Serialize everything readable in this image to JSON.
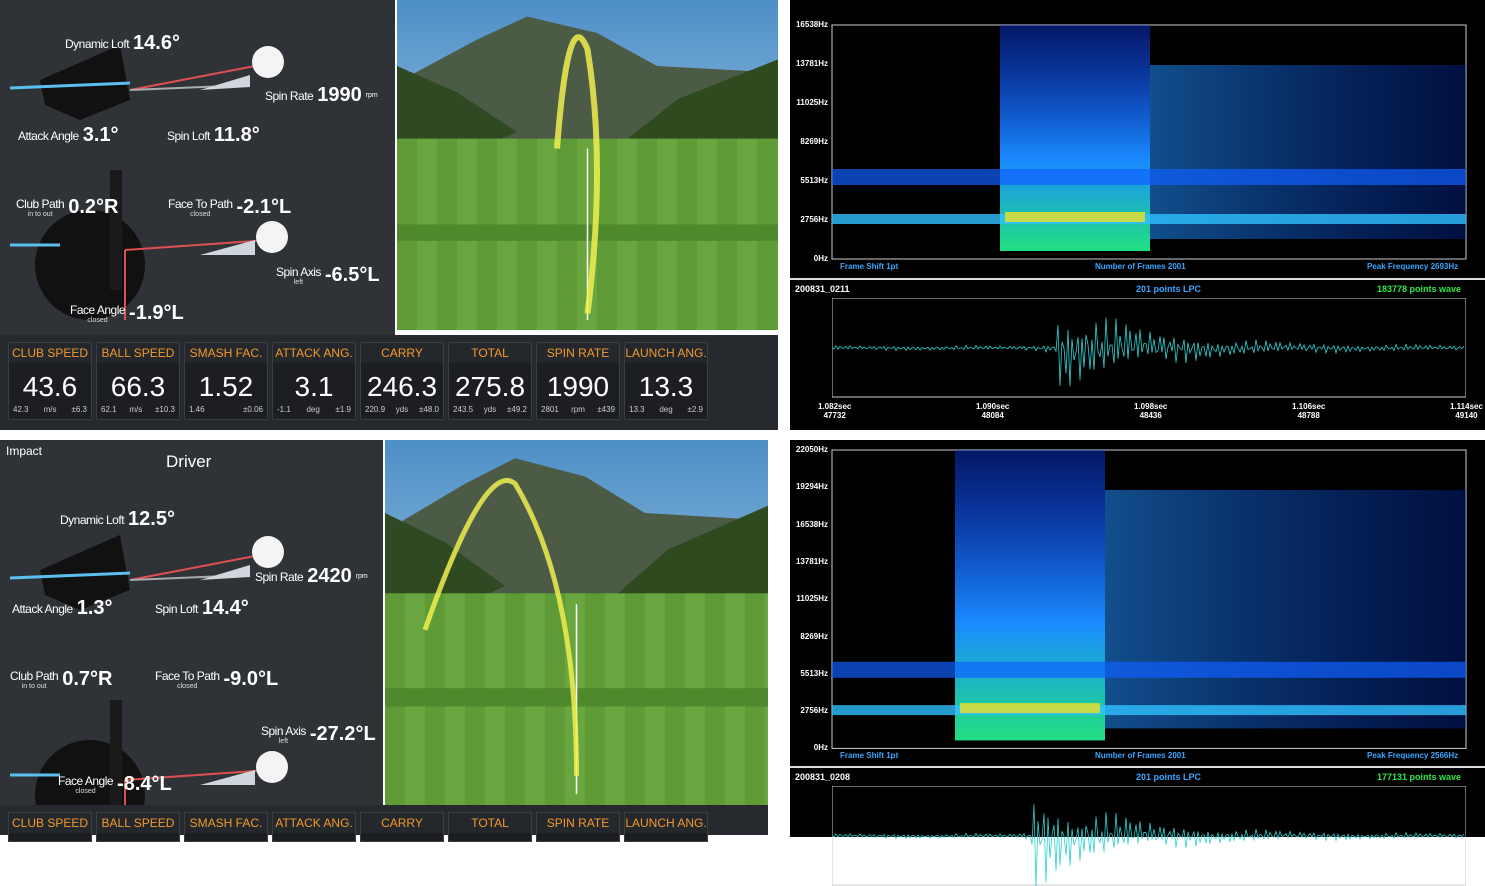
{
  "top": {
    "impact": [
      {
        "label": "Dynamic Loft",
        "value": "14.6°"
      },
      {
        "label": "Spin Rate",
        "value": "1990",
        "unit": "rpm"
      },
      {
        "label": "Attack Angle",
        "value": "3.1°"
      },
      {
        "label": "Spin Loft",
        "value": "11.8°"
      },
      {
        "label": "Club Path",
        "sub": "in to out",
        "value": "0.2°R"
      },
      {
        "label": "Face To Path",
        "sub": "closed",
        "value": "-2.1°L"
      },
      {
        "label": "Spin Axis",
        "sub": "left",
        "value": "-6.5°L"
      },
      {
        "label": "Face Angle",
        "sub": "closed",
        "value": "-1.9°L"
      }
    ],
    "stats": [
      {
        "label": "CLUB SPEED",
        "value": "43.6",
        "min": "42.3",
        "unit": "m/s",
        "range": "±6.3"
      },
      {
        "label": "BALL SPEED",
        "value": "66.3",
        "min": "62.1",
        "unit": "m/s",
        "range": "±10.3"
      },
      {
        "label": "SMASH FAC.",
        "value": "1.52",
        "min": "1.46",
        "range": "±0.06"
      },
      {
        "label": "ATTACK ANG.",
        "value": "3.1",
        "min": "-1.1",
        "unit": "deg",
        "range": "±1.9"
      },
      {
        "label": "CARRY",
        "value": "246.3",
        "min": "220.9",
        "unit": "yds",
        "range": "±48.0"
      },
      {
        "label": "TOTAL",
        "value": "275.8",
        "min": "243.5",
        "unit": "yds",
        "range": "±49.2"
      },
      {
        "label": "SPIN RATE",
        "value": "1990",
        "min": "2801",
        "unit": "rpm",
        "range": "±439"
      },
      {
        "label": "LAUNCH ANG.",
        "value": "13.3",
        "min": "13.3",
        "unit": "deg",
        "range": "±2.9"
      }
    ],
    "spectrogram": {
      "yticks": [
        "16538Hz",
        "13781Hz",
        "11025Hz",
        "8269Hz",
        "5513Hz",
        "2756Hz",
        "0Hz"
      ],
      "footer": [
        "Frame Shift 1pt",
        "Number of Frames 2001",
        "Peak Frequency 2693Hz"
      ]
    },
    "wave": {
      "id": "200831_0211",
      "lpc": "201 points LPC",
      "points": "183778 points wave",
      "ticks": [
        {
          "time": "1.082sec",
          "sample": "47732"
        },
        {
          "time": "1.090sec",
          "sample": "48084"
        },
        {
          "time": "1.098sec",
          "sample": "48436"
        },
        {
          "time": "1.106sec",
          "sample": "48788"
        },
        {
          "time": "1.114sec",
          "sample": "49140"
        }
      ]
    }
  },
  "bottom": {
    "header": {
      "mode": "Impact",
      "club": "Driver"
    },
    "impact": [
      {
        "label": "Dynamic Loft",
        "value": "12.5°"
      },
      {
        "label": "Spin Rate",
        "value": "2420",
        "unit": "rpm"
      },
      {
        "label": "Attack Angle",
        "value": "1.3°"
      },
      {
        "label": "Spin Loft",
        "value": "14.4°"
      },
      {
        "label": "Club Path",
        "sub": "in to out",
        "value": "0.7°R"
      },
      {
        "label": "Face To Path",
        "sub": "closed",
        "value": "-9.0°L"
      },
      {
        "label": "Spin Axis",
        "sub": "left",
        "value": "-27.2°L"
      },
      {
        "label": "Face Angle",
        "sub": "closed",
        "value": "-8.4°L"
      }
    ],
    "stats": [
      {
        "label": "CLUB SPEED"
      },
      {
        "label": "BALL SPEED"
      },
      {
        "label": "SMASH FAC."
      },
      {
        "label": "ATTACK ANG."
      },
      {
        "label": "CARRY"
      },
      {
        "label": "TOTAL"
      },
      {
        "label": "SPIN RATE"
      },
      {
        "label": "LAUNCH ANG."
      }
    ],
    "spectrogram": {
      "yticks": [
        "22050Hz",
        "19294Hz",
        "16538Hz",
        "13781Hz",
        "11025Hz",
        "8269Hz",
        "5513Hz",
        "2756Hz",
        "0Hz"
      ],
      "footer": [
        "Frame Shift 1pt",
        "Number of Frames 2001",
        "Peak Frequency 2566Hz"
      ]
    },
    "wave": {
      "id": "200831_0208",
      "lpc": "201 points LPC",
      "points": "177131 points wave"
    }
  }
}
